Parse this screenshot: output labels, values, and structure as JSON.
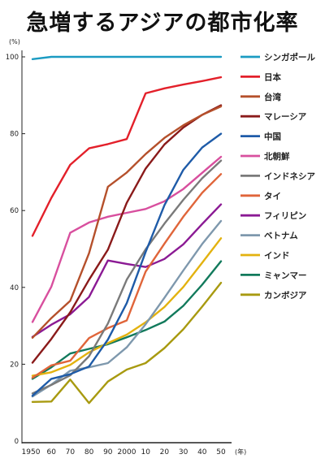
{
  "chart_data": {
    "type": "line",
    "title": "急増するアジアの都市化率",
    "ylabel": "(%)",
    "xlabel": "(年)",
    "ylim": [
      0,
      100
    ],
    "yticks": [
      0,
      20,
      40,
      60,
      80,
      100
    ],
    "grid": false,
    "legend_position": "right",
    "x": [
      1950,
      1960,
      1970,
      1980,
      1990,
      2000,
      2010,
      2020,
      2030,
      2040,
      2050
    ],
    "xtick_labels": [
      "1950",
      "60",
      "70",
      "80",
      "90",
      "2000",
      "10",
      "20",
      "30",
      "40",
      "50"
    ],
    "series": [
      {
        "name": "シンガポール",
        "color": "#1b9bc2",
        "values": [
          99.4,
          100,
          100,
          100,
          100,
          100,
          100,
          100,
          100,
          100,
          100
        ]
      },
      {
        "name": "日本",
        "color": "#e3202a",
        "values": [
          53.4,
          63.3,
          71.9,
          76.2,
          77.3,
          78.6,
          90.5,
          91.8,
          92.8,
          93.7,
          94.7
        ]
      },
      {
        "name": "台湾",
        "color": "#b5502b",
        "values": [
          26.9,
          32.0,
          36.5,
          48.9,
          66.2,
          69.9,
          74.7,
          78.9,
          82.2,
          84.9,
          87.1
        ]
      },
      {
        "name": "マレーシア",
        "color": "#8a1a1a",
        "values": [
          20.4,
          26.6,
          33.5,
          42.0,
          49.8,
          62.0,
          70.9,
          77.2,
          81.6,
          84.9,
          87.4
        ]
      },
      {
        "name": "中国",
        "color": "#1e5ba8",
        "values": [
          11.8,
          16.2,
          17.4,
          19.4,
          26.4,
          35.9,
          49.2,
          61.4,
          70.6,
          76.4,
          80.0
        ]
      },
      {
        "name": "北朝鮮",
        "color": "#d84f9e",
        "values": [
          31.0,
          40.2,
          54.2,
          56.9,
          58.4,
          59.4,
          60.4,
          62.4,
          65.6,
          69.8,
          74.0
        ]
      },
      {
        "name": "インドネシア",
        "color": "#7a7a7a",
        "values": [
          12.4,
          14.6,
          17.1,
          22.1,
          30.6,
          42.0,
          49.9,
          56.6,
          62.8,
          68.4,
          73.0
        ]
      },
      {
        "name": "タイ",
        "color": "#e0653a",
        "values": [
          16.5,
          19.7,
          20.9,
          26.8,
          29.4,
          31.4,
          44.1,
          51.4,
          58.4,
          64.6,
          69.5
        ]
      },
      {
        "name": "フィリピン",
        "color": "#8b1a94",
        "values": [
          27.1,
          30.3,
          33.0,
          37.5,
          47.0,
          46.1,
          45.3,
          47.4,
          51.2,
          56.5,
          61.6
        ]
      },
      {
        "name": "ベトナム",
        "color": "#7e98ad",
        "values": [
          11.6,
          14.7,
          18.3,
          19.2,
          20.3,
          24.4,
          30.4,
          37.3,
          44.4,
          51.3,
          57.3
        ]
      },
      {
        "name": "インド",
        "color": "#e3b20f",
        "values": [
          17.0,
          17.9,
          19.8,
          23.1,
          25.5,
          27.7,
          30.9,
          34.9,
          40.1,
          46.4,
          52.8
        ]
      },
      {
        "name": "ミャンマー",
        "color": "#127a5c",
        "values": [
          16.2,
          19.2,
          22.8,
          24.0,
          25.2,
          27.0,
          28.9,
          31.1,
          35.2,
          40.7,
          46.8
        ]
      },
      {
        "name": "カンボジア",
        "color": "#a89a10",
        "values": [
          10.2,
          10.3,
          16.0,
          9.9,
          15.5,
          18.6,
          20.3,
          24.2,
          29.1,
          35.0,
          41.2
        ]
      }
    ]
  }
}
